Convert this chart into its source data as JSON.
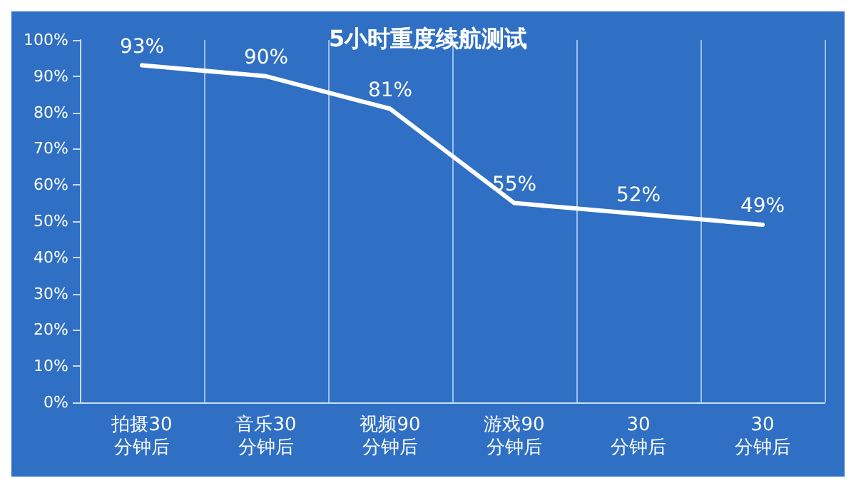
{
  "chart_data": {
    "type": "line",
    "title": "5小时重度续航测试",
    "categories": [
      "拍摄30\n分钟后",
      "音乐30\n分钟后",
      "视频90\n分钟后",
      "游戏90\n分钟后",
      "30\n分钟后",
      "30\n分钟后"
    ],
    "series": [
      {
        "color": "#ffffff",
        "values": [
          93,
          90,
          81,
          55,
          52,
          49
        ],
        "value_labels": [
          "93%",
          "90%",
          "81%",
          "55%",
          "52%",
          "49%"
        ]
      }
    ],
    "ylim": [
      0,
      100
    ],
    "yticks": [
      {
        "value": 0,
        "label": "0%"
      },
      {
        "value": 10,
        "label": "10%"
      },
      {
        "value": 20,
        "label": "20%"
      },
      {
        "value": 30,
        "label": "30%"
      },
      {
        "value": 40,
        "label": "40%"
      },
      {
        "value": 50,
        "label": "50%"
      },
      {
        "value": 60,
        "label": "60%"
      },
      {
        "value": 70,
        "label": "70%"
      },
      {
        "value": 80,
        "label": "80%"
      },
      {
        "value": 90,
        "label": "90%"
      },
      {
        "value": 100,
        "label": "100%"
      }
    ],
    "grid": "x",
    "marker": "none",
    "line_style": "solid"
  }
}
